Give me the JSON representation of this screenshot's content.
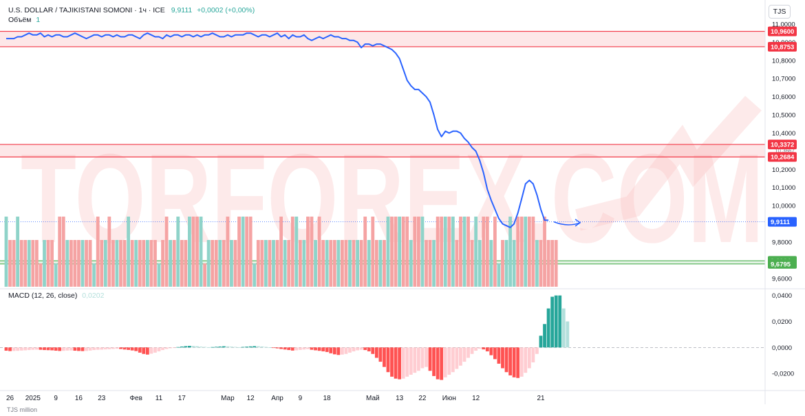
{
  "header": {
    "symbol": "U.S. DOLLAR / TAJIKISTANI SOMONI · 1ч · ICE",
    "price": "9,9111",
    "change": "+0,0002 (+0,00%)",
    "volume_label": "Объём",
    "volume_value": "1",
    "currency": "TJS"
  },
  "watermark": "TORFOREX.COM",
  "macd": {
    "label": "MACD (12, 26, close)",
    "value": "0,0202"
  },
  "footer": "TJS million",
  "colors": {
    "line": "#2962ff",
    "resistance": "#f23645",
    "support": "#4caf50",
    "vol_up": "#8fd3c9",
    "vol_down": "#f5a3a3",
    "hist_pos_strong": "#26a69a",
    "hist_pos_weak": "#b2dfdb",
    "hist_neg_strong": "#ff5252",
    "hist_neg_weak": "#ffcdd2"
  },
  "chart_data": [
    {
      "type": "line",
      "series": [
        {
          "values": [
            10.92,
            10.92,
            10.92,
            10.93,
            10.93,
            10.94,
            10.95,
            10.94,
            10.94,
            10.95,
            10.93,
            10.94,
            10.93,
            10.94,
            10.94,
            10.93,
            10.93,
            10.94,
            10.95,
            10.94,
            10.93,
            10.92,
            10.93,
            10.94,
            10.94,
            10.93,
            10.94,
            10.94,
            10.93,
            10.94,
            10.93,
            10.93,
            10.94,
            10.94,
            10.93,
            10.92,
            10.94,
            10.95,
            10.94,
            10.93,
            10.93,
            10.92,
            10.94,
            10.93,
            10.94,
            10.94,
            10.93,
            10.94,
            10.94,
            10.93,
            10.94,
            10.93,
            10.94,
            10.94,
            10.95,
            10.94,
            10.93,
            10.93,
            10.94,
            10.93,
            10.94,
            10.94,
            10.94,
            10.95,
            10.95,
            10.94,
            10.93,
            10.94,
            10.94,
            10.93,
            10.94,
            10.95,
            10.93,
            10.94,
            10.92,
            10.94,
            10.93,
            10.93,
            10.94,
            10.92,
            10.91,
            10.92,
            10.93,
            10.92,
            10.93,
            10.94,
            10.93,
            10.93,
            10.92,
            10.92,
            10.91,
            10.91,
            10.9,
            10.87,
            10.89,
            10.89,
            10.88,
            10.89,
            10.89,
            10.88,
            10.87,
            10.86,
            10.84,
            10.81,
            10.75,
            10.69,
            10.66,
            10.64,
            10.64,
            10.62,
            10.6,
            10.57,
            10.5,
            10.42,
            10.38,
            10.41,
            10.4,
            10.41,
            10.41,
            10.4,
            10.37,
            10.35,
            10.32,
            10.3,
            10.25,
            10.18,
            10.09,
            10.03,
            9.98,
            9.93,
            9.9,
            9.89,
            9.88,
            9.9,
            9.96,
            10.04,
            10.12,
            10.14,
            10.12,
            10.06,
            9.98,
            9.92,
            9.92
          ]
        }
      ],
      "projection": {
        "from": 9.9111,
        "to": 9.9062
      },
      "resistance_zones": [
        {
          "top": "10,9600",
          "bottom": "10,8753",
          "top_value": 10.96,
          "bottom_value": 10.8753
        },
        {
          "top": "10,3372",
          "bottom": "10,2684",
          "top_value": 10.3372,
          "bottom_value": 10.2684
        }
      ],
      "support_zone": {
        "top": "9,6964",
        "bottom": "9,6795",
        "top_value": 9.6964,
        "bottom_value": 9.6795
      },
      "current_price": {
        "label": "9,9111",
        "value": 9.9111
      },
      "hidden_label": "10,3667",
      "ylim": [
        9.55,
        11.0
      ],
      "yticks": [
        {
          "value": 11.0,
          "label": "11,0000"
        },
        {
          "value": 10.9,
          "label": "10,9000"
        },
        {
          "value": 10.8,
          "label": "10,8000"
        },
        {
          "value": 10.7,
          "label": "10,7000"
        },
        {
          "value": 10.6,
          "label": "10,6000"
        },
        {
          "value": 10.5,
          "label": "10,5000"
        },
        {
          "value": 10.4,
          "label": "10,4000"
        },
        {
          "value": 10.2,
          "label": "10,2000"
        },
        {
          "value": 10.1,
          "label": "10,1000"
        },
        {
          "value": 10.0,
          "label": "10,0000"
        },
        {
          "value": 9.8,
          "label": "9,8000"
        },
        {
          "value": 9.6,
          "label": "9,6000"
        }
      ],
      "volume": {
        "values": [
          3,
          2,
          2,
          3,
          2,
          2,
          2,
          2,
          2,
          1,
          2,
          2,
          2,
          1,
          3,
          3,
          2,
          2,
          2,
          2,
          2,
          2,
          2,
          1,
          3,
          2,
          2,
          3,
          2,
          2,
          2,
          2,
          3,
          2,
          2,
          2,
          2,
          2,
          2,
          2,
          1,
          2,
          3,
          2,
          2,
          3,
          2,
          2,
          3,
          3,
          3,
          3,
          1,
          2,
          2,
          2,
          2,
          2,
          3,
          2,
          2,
          3,
          3,
          3,
          3,
          1,
          2,
          2,
          2,
          2,
          2,
          2,
          3,
          2,
          2,
          3,
          3,
          2,
          2,
          3,
          3,
          2,
          3,
          2,
          2,
          2,
          2,
          2,
          2,
          2,
          2,
          2,
          2,
          2,
          3,
          2,
          3,
          2,
          2,
          2,
          3,
          3,
          3,
          3,
          3,
          3,
          2,
          3,
          3,
          3,
          2,
          2,
          2,
          3,
          3,
          3,
          3,
          3,
          2,
          3,
          3,
          3,
          2,
          3,
          2,
          3,
          3,
          2,
          3,
          1,
          2,
          2,
          3,
          2,
          3,
          3,
          3,
          3,
          3,
          2,
          2,
          3,
          2,
          2,
          2
        ],
        "colors": [
          "u",
          "d",
          "d",
          "u",
          "d",
          "d",
          "u",
          "d",
          "d",
          "d",
          "u",
          "d",
          "d",
          "u",
          "d",
          "d",
          "u",
          "d",
          "d",
          "d",
          "u",
          "d",
          "d",
          "u",
          "d",
          "d",
          "u",
          "d",
          "d",
          "u",
          "d",
          "d",
          "u",
          "d",
          "u",
          "d",
          "d",
          "u",
          "d",
          "d",
          "u",
          "d",
          "d",
          "u",
          "d",
          "u",
          "d",
          "d",
          "u",
          "d",
          "d",
          "u",
          "d",
          "u",
          "d",
          "d",
          "u",
          "d",
          "d",
          "u",
          "d",
          "d",
          "u",
          "d",
          "d",
          "u",
          "d",
          "d",
          "u",
          "d",
          "u",
          "d",
          "d",
          "u",
          "d",
          "d",
          "u",
          "d",
          "u",
          "d",
          "d",
          "u",
          "d",
          "d",
          "u",
          "d",
          "d",
          "u",
          "d",
          "d",
          "u",
          "d",
          "u",
          "d",
          "d",
          "u",
          "d",
          "d",
          "u",
          "d",
          "u",
          "d",
          "d",
          "u",
          "d",
          "d",
          "u",
          "d",
          "d",
          "u",
          "d",
          "d",
          "u",
          "d",
          "d",
          "u",
          "d",
          "u",
          "d",
          "d",
          "u",
          "d",
          "d",
          "u",
          "u",
          "d",
          "d",
          "u",
          "d",
          "u",
          "d",
          "u",
          "u",
          "u",
          "d",
          "d",
          "u",
          "d",
          "d",
          "u",
          "d",
          "d",
          "d",
          "d",
          "d"
        ]
      }
    },
    {
      "type": "bar",
      "title": "MACD (12, 26, close)",
      "values": [
        -0.0025,
        -0.0028,
        -0.0027,
        -0.0026,
        -0.0024,
        -0.0022,
        -0.002,
        -0.0018,
        -0.0017,
        -0.0018,
        -0.002,
        -0.0021,
        -0.0022,
        -0.0025,
        -0.0027,
        -0.0026,
        -0.0024,
        -0.0023,
        -0.0025,
        -0.0027,
        -0.0028,
        -0.0027,
        -0.0024,
        -0.002,
        -0.0018,
        -0.0017,
        -0.0015,
        -0.0014,
        -0.0012,
        -0.001,
        -0.0012,
        -0.0016,
        -0.0019,
        -0.0023,
        -0.0028,
        -0.004,
        -0.005,
        -0.0055,
        -0.0048,
        -0.004,
        -0.003,
        -0.002,
        -0.0012,
        -0.0006,
        -0.0002,
        0.0003,
        0.0007,
        0.001,
        0.0012,
        0.0011,
        0.0009,
        0.0006,
        0.0004,
        0.0002,
        0.0003,
        0.0005,
        0.0007,
        0.0009,
        0.0008,
        0.0006,
        0.0004,
        0.0002,
        0.0004,
        0.0006,
        0.0008,
        0.001,
        0.0009,
        0.0007,
        0.0004,
        0.0001,
        -0.0003,
        -0.0007,
        -0.0012,
        -0.0016,
        -0.002,
        -0.0024,
        -0.0022,
        -0.0019,
        -0.0016,
        -0.0013,
        -0.0018,
        -0.0022,
        -0.0026,
        -0.003,
        -0.0035,
        -0.0045,
        -0.0053,
        -0.0058,
        -0.0055,
        -0.005,
        -0.004,
        -0.003,
        -0.0022,
        -0.0018,
        -0.002,
        -0.003,
        -0.005,
        -0.008,
        -0.011,
        -0.015,
        -0.019,
        -0.0225,
        -0.024,
        -0.0245,
        -0.024,
        -0.0225,
        -0.021,
        -0.0195,
        -0.018,
        -0.016,
        -0.015,
        -0.018,
        -0.022,
        -0.0245,
        -0.025,
        -0.023,
        -0.021,
        -0.019,
        -0.0165,
        -0.014,
        -0.011,
        -0.008,
        -0.005,
        -0.0025,
        -0.001,
        -0.0015,
        -0.003,
        -0.006,
        -0.009,
        -0.0125,
        -0.016,
        -0.019,
        -0.0215,
        -0.023,
        -0.0235,
        -0.0225,
        -0.0195,
        -0.016,
        -0.0115,
        -0.005,
        0.009,
        0.018,
        0.03,
        0.039,
        0.04,
        0.04,
        0.03,
        0.02
      ],
      "ylim": [
        -0.03,
        0.043
      ],
      "yticks": [
        {
          "value": 0.04,
          "label": "0,0400"
        },
        {
          "value": 0.02,
          "label": "0,0200"
        },
        {
          "value": 0.0,
          "label": "0,0000"
        },
        {
          "value": -0.02,
          "label": "-0,0200"
        }
      ]
    }
  ],
  "x_axis": {
    "ticks": [
      {
        "i": 1,
        "label": "26"
      },
      {
        "i": 7,
        "label": "2025"
      },
      {
        "i": 13,
        "label": "9"
      },
      {
        "i": 19,
        "label": "16"
      },
      {
        "i": 25,
        "label": "23"
      },
      {
        "i": 34,
        "label": "Фев"
      },
      {
        "i": 40,
        "label": "11"
      },
      {
        "i": 46,
        "label": "17"
      },
      {
        "i": 58,
        "label": "Мар"
      },
      {
        "i": 64,
        "label": "12"
      },
      {
        "i": 71,
        "label": "Апр"
      },
      {
        "i": 77,
        "label": "9"
      },
      {
        "i": 84,
        "label": "18"
      },
      {
        "i": 96,
        "label": "Май"
      },
      {
        "i": 103,
        "label": "13"
      },
      {
        "i": 109,
        "label": "22"
      },
      {
        "i": 116,
        "label": "Июн"
      },
      {
        "i": 123,
        "label": "12"
      },
      {
        "i": 140,
        "label": "21"
      }
    ]
  }
}
